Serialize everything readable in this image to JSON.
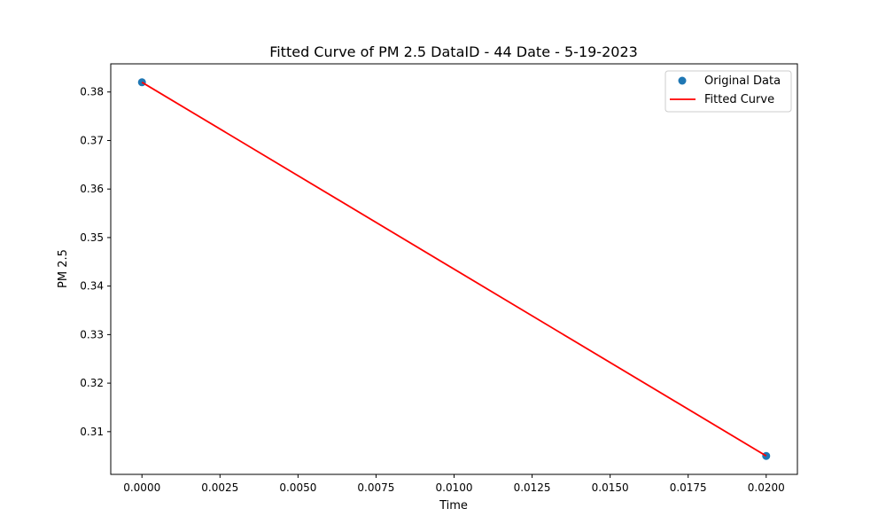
{
  "chart_data": {
    "type": "line",
    "title": "Fitted Curve of PM 2.5 DataID - 44 Date - 5-19-2023",
    "xlabel": "Time",
    "ylabel": "PM 2.5",
    "xlim": [
      -0.001,
      0.021
    ],
    "ylim": [
      0.3012,
      0.3858
    ],
    "x_ticks": [
      0.0,
      0.0025,
      0.005,
      0.0075,
      0.01,
      0.0125,
      0.015,
      0.0175,
      0.02
    ],
    "x_tick_labels": [
      "0.0000",
      "0.0025",
      "0.0050",
      "0.0075",
      "0.0100",
      "0.0125",
      "0.0150",
      "0.0175",
      "0.0200"
    ],
    "y_ticks": [
      0.31,
      0.32,
      0.33,
      0.34,
      0.35,
      0.36,
      0.37,
      0.38
    ],
    "y_tick_labels": [
      "0.31",
      "0.32",
      "0.33",
      "0.34",
      "0.35",
      "0.36",
      "0.37",
      "0.38"
    ],
    "grid": false,
    "legend_position": "top-right",
    "series": [
      {
        "name": "Original Data",
        "kind": "scatter",
        "color": "#1f77b4",
        "points": [
          {
            "x": 0.0,
            "y": 0.382
          },
          {
            "x": 0.02,
            "y": 0.305
          }
        ]
      },
      {
        "name": "Fitted Curve",
        "kind": "line",
        "color": "#ff0000",
        "points": [
          {
            "x": 0.0,
            "y": 0.382
          },
          {
            "x": 0.02,
            "y": 0.305
          }
        ]
      }
    ]
  }
}
